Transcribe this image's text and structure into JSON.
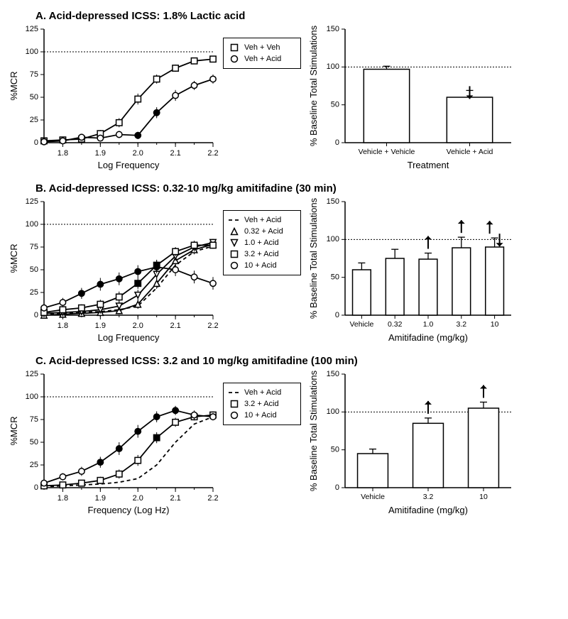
{
  "figure": {
    "bg": "#ffffff",
    "font": "Arial",
    "title_fontsize": 15,
    "axis_label_fontsize": 13,
    "tick_fontsize": 11,
    "legend_fontsize": 11,
    "line_color": "#000000",
    "marker_stroke": "#000000",
    "marker_fill_open": "#ffffff",
    "marker_fill_closed": "#000000",
    "grid_ref_dash": "2,2",
    "panels": [
      "A",
      "B",
      "C"
    ]
  },
  "A": {
    "title": "A. Acid-depressed ICSS: 1.8% Lactic acid",
    "line": {
      "xlabel": "Log Frequency",
      "ylabel": "%MCR",
      "xlim": [
        1.75,
        2.2
      ],
      "ylim": [
        0,
        125
      ],
      "xticks": [
        1.8,
        1.9,
        2.0,
        2.1,
        2.2
      ],
      "yticks": [
        0,
        25,
        50,
        75,
        100,
        125
      ],
      "ref_y": 100,
      "x": [
        1.75,
        1.8,
        1.85,
        1.9,
        1.95,
        2.0,
        2.05,
        2.1,
        2.15,
        2.2
      ],
      "series": [
        {
          "name": "Veh + Veh",
          "marker": "square",
          "fill": "open",
          "style": "solid",
          "y": [
            2,
            3,
            4,
            10,
            22,
            48,
            70,
            82,
            90,
            92
          ],
          "err": [
            2,
            2,
            3,
            4,
            5,
            6,
            5,
            4,
            3,
            3
          ]
        },
        {
          "name": "Veh + Acid",
          "marker": "circle",
          "fill": "open",
          "style": "solid",
          "y": [
            1,
            2,
            6,
            5,
            9,
            8,
            33,
            52,
            63,
            70
          ],
          "err": [
            2,
            2,
            3,
            3,
            4,
            4,
            6,
            6,
            5,
            5
          ],
          "closed_idx": [
            5,
            6
          ]
        }
      ],
      "legend_pos": "right"
    },
    "bar": {
      "xlabel": "Treatment",
      "ylabel": "% Baseline Total Stimulations",
      "ylim": [
        0,
        150
      ],
      "yticks": [
        0,
        50,
        100,
        150
      ],
      "ref_y": 100,
      "cats": [
        "Vehicle + Vehicle",
        "Vehicle + Acid"
      ],
      "vals": [
        97,
        60
      ],
      "err": [
        4,
        9
      ],
      "annot": [
        [],
        [
          "down"
        ]
      ]
    }
  },
  "B": {
    "title": "B. Acid-depressed ICSS: 0.32-10 mg/kg amitifadine (30 min)",
    "line": {
      "xlabel": "Log Frequency",
      "ylabel": "%MCR",
      "xlim": [
        1.75,
        2.2
      ],
      "ylim": [
        0,
        125
      ],
      "xticks": [
        1.8,
        1.9,
        2.0,
        2.1,
        2.2
      ],
      "yticks": [
        0,
        25,
        50,
        75,
        100,
        125
      ],
      "ref_y": 100,
      "x": [
        1.75,
        1.8,
        1.85,
        1.9,
        1.95,
        2.0,
        2.05,
        2.1,
        2.15,
        2.2
      ],
      "series": [
        {
          "name": "Veh + Acid",
          "marker": "none",
          "fill": "open",
          "style": "dash",
          "y": [
            1,
            2,
            3,
            4,
            6,
            10,
            30,
            55,
            70,
            76
          ],
          "err": [
            0,
            0,
            0,
            0,
            0,
            0,
            0,
            0,
            0,
            0
          ]
        },
        {
          "name": "0.32 + Acid",
          "marker": "triangle-up",
          "fill": "open",
          "style": "solid",
          "y": [
            0,
            1,
            2,
            3,
            5,
            12,
            35,
            60,
            72,
            78
          ],
          "err": [
            2,
            2,
            3,
            3,
            4,
            5,
            6,
            6,
            5,
            5
          ]
        },
        {
          "name": "1.0 + Acid",
          "marker": "triangle-down",
          "fill": "open",
          "style": "solid",
          "y": [
            2,
            3,
            4,
            6,
            10,
            22,
            45,
            65,
            75,
            80
          ],
          "err": [
            3,
            3,
            4,
            4,
            5,
            6,
            6,
            5,
            5,
            4
          ]
        },
        {
          "name": "3.2 + Acid",
          "marker": "square",
          "fill": "open",
          "style": "solid",
          "y": [
            3,
            6,
            8,
            12,
            20,
            35,
            55,
            70,
            77,
            77
          ],
          "err": [
            3,
            4,
            4,
            5,
            6,
            6,
            6,
            5,
            5,
            4
          ],
          "closed_idx": [
            5,
            6
          ]
        },
        {
          "name": "10 + Acid",
          "marker": "circle",
          "fill": "open",
          "style": "solid",
          "y": [
            8,
            14,
            24,
            34,
            40,
            48,
            53,
            50,
            42,
            35
          ],
          "err": [
            4,
            5,
            6,
            7,
            7,
            7,
            7,
            7,
            7,
            7
          ],
          "closed_idx": [
            2,
            3,
            4,
            5,
            6
          ]
        }
      ],
      "legend_pos": "right"
    },
    "bar": {
      "xlabel": "Amitifadine (mg/kg)",
      "ylabel": "% Baseline Total Stimulations",
      "ylim": [
        0,
        150
      ],
      "yticks": [
        0,
        50,
        100,
        150
      ],
      "ref_y": 100,
      "cats": [
        "Vehicle",
        "0.32",
        "1.0",
        "3.2",
        "10"
      ],
      "vals": [
        60,
        75,
        74,
        89,
        90
      ],
      "err": [
        9,
        12,
        8,
        14,
        12
      ],
      "annot": [
        [],
        [],
        [
          "up"
        ],
        [
          "up"
        ],
        [
          "up",
          "down"
        ]
      ]
    }
  },
  "C": {
    "title": "C. Acid-depressed ICSS: 3.2 and 10 mg/kg amitifadine (100 min)",
    "line": {
      "xlabel": "Frequency (Log Hz)",
      "ylabel": "%MCR",
      "xlim": [
        1.75,
        2.2
      ],
      "ylim": [
        0,
        125
      ],
      "xticks": [
        1.8,
        1.9,
        2.0,
        2.1,
        2.2
      ],
      "yticks": [
        0,
        25,
        50,
        75,
        100,
        125
      ],
      "ref_y": 100,
      "x": [
        1.75,
        1.8,
        1.85,
        1.9,
        1.95,
        2.0,
        2.05,
        2.1,
        2.15,
        2.2
      ],
      "series": [
        {
          "name": "Veh + Acid",
          "marker": "none",
          "fill": "open",
          "style": "dash",
          "y": [
            1,
            2,
            3,
            4,
            6,
            10,
            25,
            50,
            70,
            78
          ],
          "err": [
            0,
            0,
            0,
            0,
            0,
            0,
            0,
            0,
            0,
            0
          ]
        },
        {
          "name": "3.2 + Acid",
          "marker": "square",
          "fill": "open",
          "style": "solid",
          "y": [
            2,
            3,
            5,
            8,
            15,
            30,
            55,
            72,
            78,
            80
          ],
          "err": [
            2,
            3,
            3,
            4,
            5,
            6,
            6,
            5,
            4,
            4
          ],
          "closed_idx": [
            6
          ]
        },
        {
          "name": "10 + Acid",
          "marker": "circle",
          "fill": "open",
          "style": "solid",
          "y": [
            5,
            12,
            18,
            28,
            43,
            62,
            78,
            85,
            80,
            78
          ],
          "err": [
            3,
            4,
            5,
            6,
            7,
            7,
            6,
            5,
            5,
            4
          ],
          "closed_idx": [
            3,
            4,
            5,
            6,
            7
          ]
        }
      ],
      "legend_pos": "right"
    },
    "bar": {
      "xlabel": "Amitifadine (mg/kg)",
      "ylabel": "% Baseline Total Stimulations",
      "ylim": [
        0,
        150
      ],
      "yticks": [
        0,
        50,
        100,
        150
      ],
      "ref_y": 100,
      "cats": [
        "Vehicle",
        "3.2",
        "10"
      ],
      "vals": [
        45,
        85,
        105
      ],
      "err": [
        6,
        7,
        8
      ],
      "annot": [
        [],
        [
          "up"
        ],
        [
          "up"
        ]
      ]
    }
  }
}
